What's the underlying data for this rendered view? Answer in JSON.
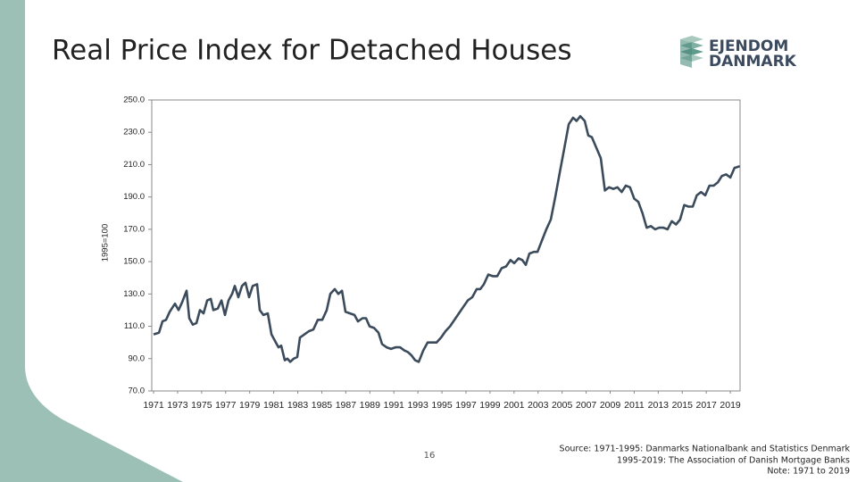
{
  "chart_data": {
    "type": "line",
    "title": "Real Price Index for Detached Houses",
    "y_label": "1995=100",
    "color": "#3b4b5b",
    "grid": false,
    "xlim": [
      1970.85,
      2019.81
    ],
    "ylim": [
      70,
      250
    ],
    "xticks": [
      1971,
      1973,
      1975,
      1977,
      1979,
      1981,
      1983,
      1985,
      1987,
      1989,
      1991,
      1993,
      1995,
      1997,
      1999,
      2001,
      2003,
      2005,
      2007,
      2009,
      2011,
      2013,
      2015,
      2017,
      2019
    ],
    "yticks": [
      {
        "value": 70,
        "label": "70.0"
      },
      {
        "value": 90,
        "label": "90.0"
      },
      {
        "value": 110,
        "label": "110.0"
      },
      {
        "value": 130,
        "label": "130.0"
      },
      {
        "value": 150,
        "label": "150.0"
      },
      {
        "value": 170,
        "label": "170.0"
      },
      {
        "value": 190,
        "label": "190.0"
      },
      {
        "value": 210,
        "label": "210.0"
      },
      {
        "value": 230,
        "label": "230.0"
      },
      {
        "value": 250,
        "label": "250.0"
      }
    ],
    "x": [
      1971.0,
      1971.45,
      1971.74,
      1972.04,
      1972.34,
      1972.78,
      1973.08,
      1973.38,
      1973.75,
      1973.97,
      1974.27,
      1974.57,
      1974.86,
      1975.16,
      1975.46,
      1975.76,
      1975.98,
      1976.35,
      1976.65,
      1976.94,
      1977.24,
      1977.54,
      1977.76,
      1978.06,
      1978.36,
      1978.65,
      1978.95,
      1979.25,
      1979.62,
      1979.84,
      1980.14,
      1980.51,
      1980.81,
      1981.18,
      1981.4,
      1981.62,
      1981.92,
      1982.14,
      1982.37,
      1982.66,
      1982.96,
      1983.18,
      1983.56,
      1983.93,
      1984.3,
      1984.67,
      1985.04,
      1985.41,
      1985.71,
      1986.08,
      1986.38,
      1986.68,
      1986.97,
      1987.35,
      1987.72,
      1988.01,
      1988.39,
      1988.68,
      1988.98,
      1989.35,
      1989.72,
      1990.02,
      1990.39,
      1990.76,
      1991.13,
      1991.51,
      1991.88,
      1992.17,
      1992.47,
      1992.77,
      1993.07,
      1993.44,
      1993.81,
      1994.18,
      1994.55,
      1994.92,
      1995.3,
      1995.67,
      1996.04,
      1996.41,
      1996.78,
      1997.15,
      1997.52,
      1997.89,
      1998.19,
      1998.49,
      1998.86,
      1999.23,
      1999.6,
      1999.97,
      2000.34,
      2000.71,
      2001.01,
      2001.38,
      2001.68,
      2001.98,
      2002.28,
      2002.65,
      2002.95,
      2003.32,
      2003.69,
      2004.06,
      2004.43,
      2004.8,
      2005.18,
      2005.55,
      2005.92,
      2006.21,
      2006.51,
      2006.88,
      2007.18,
      2007.48,
      2008.22,
      2008.56,
      2008.91,
      2009.26,
      2009.61,
      2009.96,
      2010.3,
      2010.65,
      2011.0,
      2011.34,
      2011.69,
      2012.04,
      2012.39,
      2012.74,
      2013.08,
      2013.43,
      2013.78,
      2014.13,
      2014.48,
      2014.82,
      2015.17,
      2015.52,
      2015.87,
      2016.21,
      2016.56,
      2016.91,
      2017.26,
      2017.61,
      2017.95,
      2018.3,
      2018.65,
      2019.0,
      2019.35,
      2019.78
    ],
    "values": [
      105,
      106,
      113,
      114,
      119,
      124,
      120,
      125,
      132,
      115,
      111,
      112,
      120,
      118,
      126,
      127,
      120,
      121,
      126,
      117,
      126,
      130,
      135,
      128,
      135,
      137,
      128,
      135,
      136,
      120,
      117,
      118,
      105,
      100,
      97,
      98,
      89,
      90,
      88,
      90,
      91,
      103,
      105,
      107,
      108,
      114,
      114,
      120,
      130,
      133,
      130,
      132,
      119,
      118,
      117,
      113,
      115,
      115,
      110,
      109,
      106,
      99,
      97,
      96,
      97,
      97,
      95,
      94,
      92,
      89,
      88,
      95,
      100,
      100,
      100,
      103,
      107,
      110,
      114,
      118,
      122,
      126,
      128,
      133,
      133,
      136,
      142,
      141,
      141,
      146,
      147,
      151,
      149,
      152,
      151,
      148,
      155,
      156,
      156,
      163,
      170,
      176,
      190,
      205,
      220,
      235,
      239,
      237,
      240,
      237,
      228,
      227,
      214,
      194,
      196,
      195,
      196,
      193,
      197,
      196,
      189,
      187,
      180,
      171,
      172,
      170,
      171,
      171,
      170,
      175,
      173,
      176,
      185,
      184,
      184,
      191,
      193,
      191,
      197,
      197,
      199,
      203,
      204,
      202,
      208,
      209
    ]
  },
  "page_number": "16",
  "source": [
    "Source: 1971-1995: Danmarks Nationalbank and Statistics Denmark",
    "1995-2019: The Association of Danish Mortgage Banks",
    "Note: 1971 to 2019"
  ],
  "logo": [
    "EJENDOM",
    "DANMARK"
  ]
}
